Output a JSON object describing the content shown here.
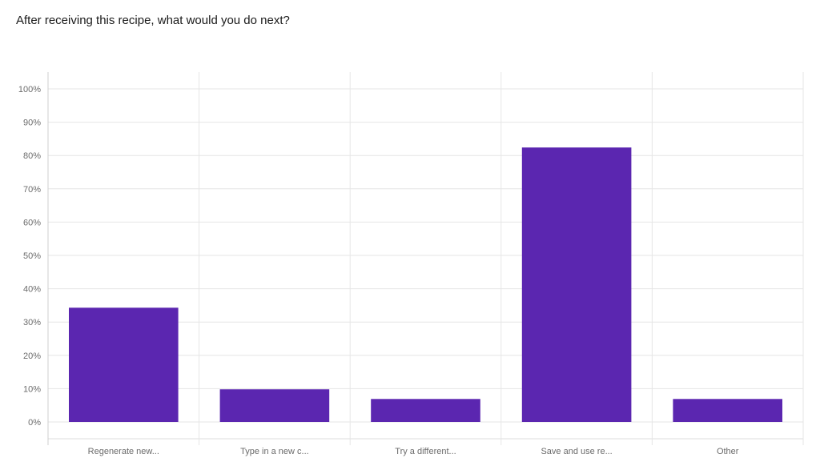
{
  "question": "After receiving this recipe, what would you do next?",
  "chart_data": {
    "type": "bar",
    "title": "After receiving this recipe, what would you do next?",
    "categories": [
      "Regenerate new...",
      "Type in a new c...",
      "Try a different...",
      "Save and use re...",
      "Other"
    ],
    "values": [
      34.3,
      9.8,
      6.9,
      82.4,
      6.9
    ],
    "value_unit": "%",
    "y_ticks": [
      "0%",
      "10%",
      "20%",
      "30%",
      "40%",
      "50%",
      "60%",
      "70%",
      "80%",
      "90%",
      "100%"
    ],
    "ylim": [
      0,
      100
    ],
    "grid": true,
    "legend": "none",
    "bar_color": "#5b26b0"
  }
}
